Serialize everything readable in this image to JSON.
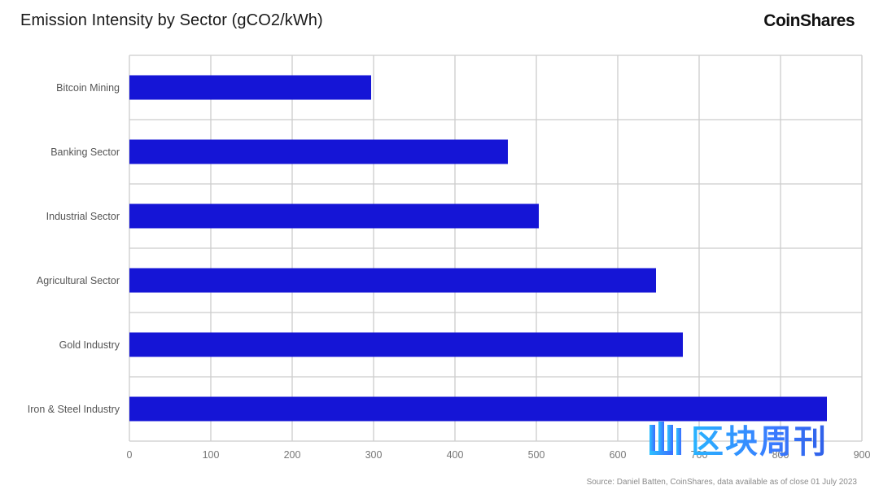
{
  "header": {
    "title": "Emission Intensity by Sector (gCO2/kWh)",
    "brand": "CoinShares"
  },
  "footer": {
    "source": "Source: Daniel Batten, CoinShares, data available as of close 01 July 2023"
  },
  "watermark": {
    "text": "区块周刊"
  },
  "colors": {
    "bar": "#1515d6",
    "grid": "#cccccc",
    "axis": "#999999",
    "watermark": "#2f8cff"
  },
  "chart_data": {
    "type": "bar",
    "orientation": "horizontal",
    "title": "Emission Intensity by Sector (gCO2/kWh)",
    "categories": [
      "Bitcoin Mining",
      "Banking Sector",
      "Industrial Sector",
      "Agricultural Sector",
      "Gold Industry",
      "Iron & Steel Industry"
    ],
    "values": [
      297,
      465,
      503,
      647,
      680,
      857
    ],
    "xlim": [
      0,
      900
    ],
    "xticks": [
      0,
      100,
      200,
      300,
      400,
      500,
      600,
      700,
      800,
      900
    ],
    "xlabel": "",
    "ylabel": "",
    "grid": true,
    "legend": "none"
  }
}
